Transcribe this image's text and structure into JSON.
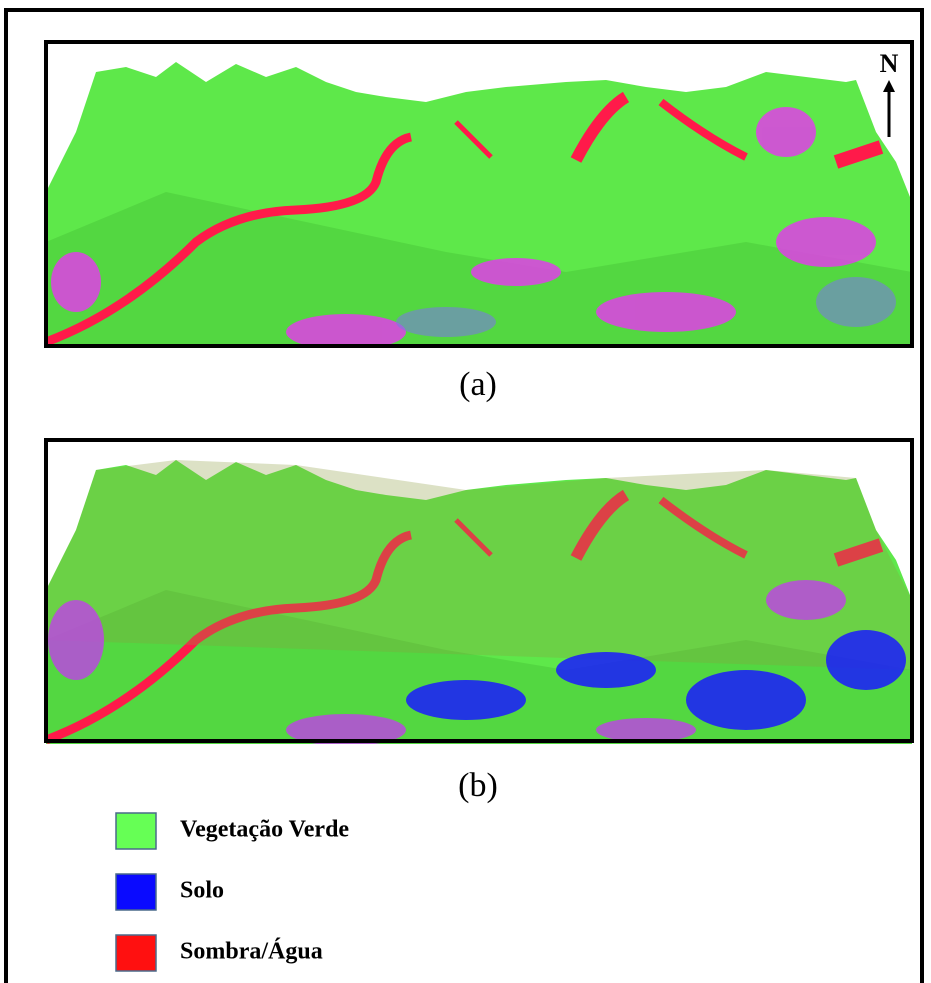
{
  "panels": [
    {
      "label": "(a)"
    },
    {
      "label": "(b)"
    }
  ],
  "north": "N",
  "legend": [
    {
      "label": "Vegetação Verde",
      "color": "#66ff55"
    },
    {
      "label": "Solo",
      "color": "#0a0aff"
    },
    {
      "label": "Sombra/Água",
      "color": "#ff1010"
    }
  ]
}
